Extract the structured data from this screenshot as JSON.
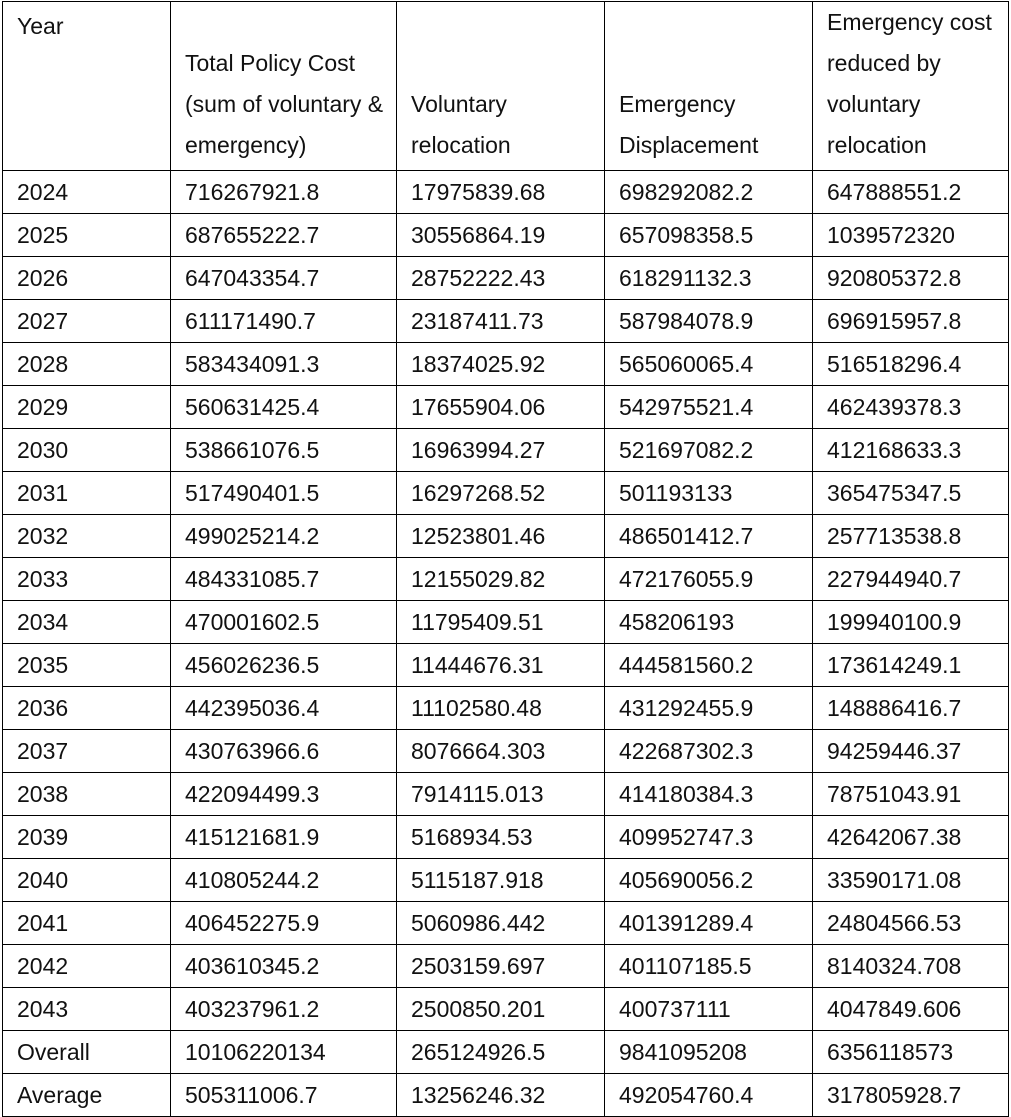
{
  "table": {
    "headers": [
      "Year",
      "Total Policy Cost (sum of voluntary & emergency)",
      "Voluntary relocation",
      "Emergency Displacement",
      "Emergency cost reduced by voluntary relocation"
    ],
    "rows": [
      [
        "2024",
        "716267921.8",
        "17975839.68",
        "698292082.2",
        "647888551.2"
      ],
      [
        "2025",
        "687655222.7",
        "30556864.19",
        "657098358.5",
        "1039572320"
      ],
      [
        "2026",
        "647043354.7",
        "28752222.43",
        "618291132.3",
        "920805372.8"
      ],
      [
        "2027",
        "611171490.7",
        "23187411.73",
        "587984078.9",
        "696915957.8"
      ],
      [
        "2028",
        "583434091.3",
        "18374025.92",
        "565060065.4",
        "516518296.4"
      ],
      [
        "2029",
        "560631425.4",
        "17655904.06",
        "542975521.4",
        "462439378.3"
      ],
      [
        "2030",
        "538661076.5",
        "16963994.27",
        "521697082.2",
        "412168633.3"
      ],
      [
        "2031",
        "517490401.5",
        "16297268.52",
        "501193133",
        "365475347.5"
      ],
      [
        "2032",
        "499025214.2",
        "12523801.46",
        "486501412.7",
        "257713538.8"
      ],
      [
        "2033",
        "484331085.7",
        "12155029.82",
        "472176055.9",
        "227944940.7"
      ],
      [
        "2034",
        "470001602.5",
        "11795409.51",
        "458206193",
        "199940100.9"
      ],
      [
        "2035",
        "456026236.5",
        "11444676.31",
        "444581560.2",
        "173614249.1"
      ],
      [
        "2036",
        "442395036.4",
        "11102580.48",
        "431292455.9",
        "148886416.7"
      ],
      [
        "2037",
        "430763966.6",
        "8076664.303",
        "422687302.3",
        "94259446.37"
      ],
      [
        "2038",
        "422094499.3",
        "7914115.013",
        "414180384.3",
        "78751043.91"
      ],
      [
        "2039",
        "415121681.9",
        "5168934.53",
        "409952747.3",
        "42642067.38"
      ],
      [
        "2040",
        "410805244.2",
        "5115187.918",
        "405690056.2",
        "33590171.08"
      ],
      [
        "2041",
        "406452275.9",
        "5060986.442",
        "401391289.4",
        "24804566.53"
      ],
      [
        "2042",
        "403610345.2",
        "2503159.697",
        "401107185.5",
        "8140324.708"
      ],
      [
        "2043",
        "403237961.2",
        "2500850.201",
        "400737111",
        "4047849.606"
      ],
      [
        "Overall",
        "10106220134",
        "265124926.5",
        "9841095208",
        "6356118573"
      ],
      [
        "Average",
        "505311006.7",
        "13256246.32",
        "492054760.4",
        "317805928.7"
      ]
    ]
  }
}
